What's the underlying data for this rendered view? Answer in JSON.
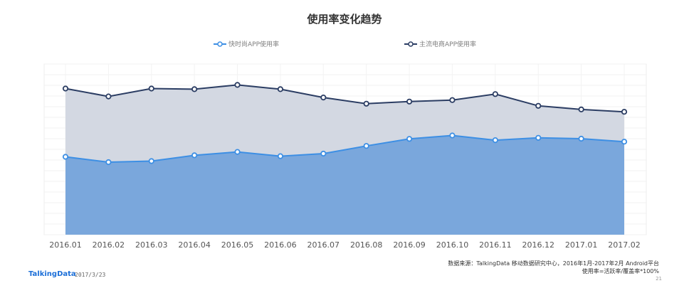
{
  "chart_data": {
    "type": "area",
    "title": "使用率变化趋势",
    "categories": [
      "2016.01",
      "2016.02",
      "2016.03",
      "2016.04",
      "2016.05",
      "2016.06",
      "2016.07",
      "2016.08",
      "2016.09",
      "2016.10",
      "2016.11",
      "2016.12",
      "2017.01",
      "2017.02"
    ],
    "series": [
      {
        "name": "快时尚APP使用率",
        "color": "#3d8fe4",
        "fill": "#7aa7dc",
        "values": [
          0.365,
          0.34,
          0.345,
          0.372,
          0.388,
          0.368,
          0.38,
          0.416,
          0.449,
          0.465,
          0.443,
          0.454,
          0.45,
          0.436
        ]
      },
      {
        "name": "主流电商APP使用率",
        "color": "#2b3d63",
        "fill": "#d3d8e2",
        "values": [
          0.685,
          0.648,
          0.685,
          0.682,
          0.702,
          0.682,
          0.643,
          0.614,
          0.624,
          0.631,
          0.659,
          0.604,
          0.587,
          0.576
        ]
      }
    ],
    "ylim": [
      0,
      0.8
    ],
    "grid": true,
    "legend_position": "top"
  },
  "footer": {
    "source_line1": "数据来源：TalkingData 移动数据研究中心，2016年1月-2017年2月 Android平台",
    "source_line2": "使用率=活跃率/覆盖率*100%",
    "brand": "TalkingData",
    "date": "2017/3/23",
    "page": "21"
  }
}
